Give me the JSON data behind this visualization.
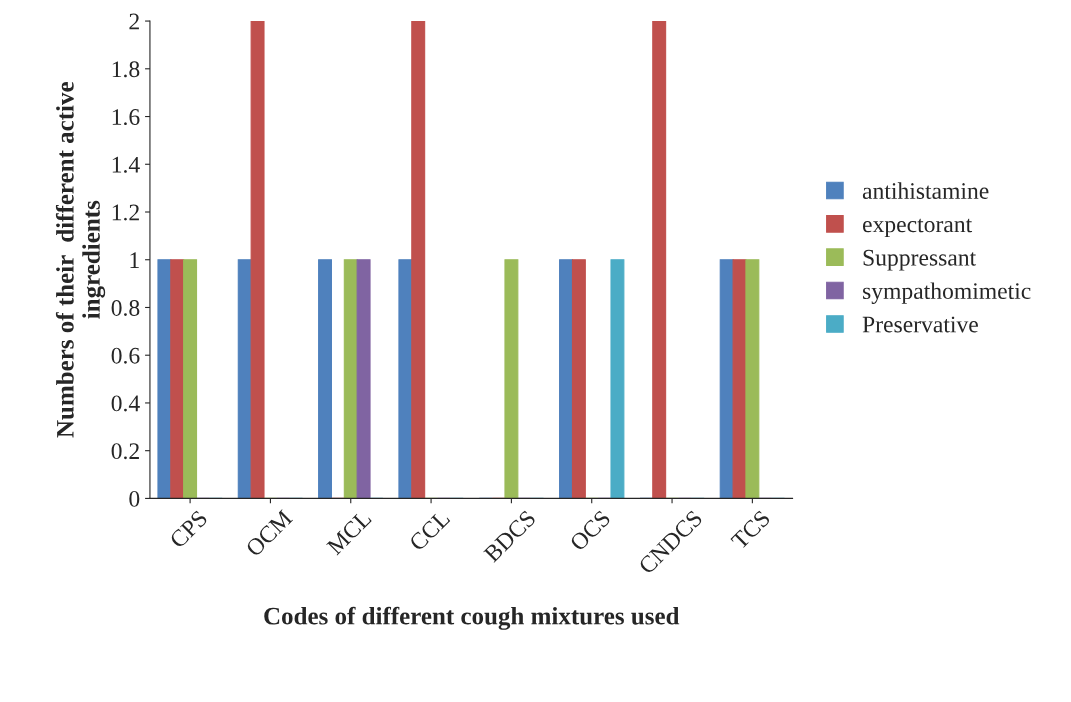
{
  "chart_data": {
    "type": "bar",
    "xlabel": "Codes of different cough mixtures used",
    "ylabel": "Numbers of their  different active\ningredients",
    "categories": [
      "CPS",
      "OCM",
      "MCL",
      "CCL",
      "BDCS",
      "OCS",
      "CNDCS",
      "TCS"
    ],
    "series": [
      {
        "name": "antihistamine",
        "color": "#4f81bd",
        "values": [
          1,
          1,
          1,
          1,
          0,
          1,
          0,
          1
        ]
      },
      {
        "name": "expectorant",
        "color": "#c0504d",
        "values": [
          1,
          2,
          0,
          2,
          0,
          1,
          2,
          1
        ]
      },
      {
        "name": "Suppressant",
        "color": "#9bbb59",
        "values": [
          1,
          0,
          1,
          0,
          1,
          0,
          0,
          1
        ]
      },
      {
        "name": "sympathomimetic",
        "color": "#8064a2",
        "values": [
          0,
          0,
          1,
          0,
          0,
          0,
          0,
          0
        ]
      },
      {
        "name": "Preservative",
        "color": "#4bacc6",
        "values": [
          0,
          0,
          0,
          0,
          0,
          1,
          0,
          0
        ]
      }
    ],
    "ylim": [
      0,
      2
    ],
    "yticks": [
      0,
      0.2,
      0.4,
      0.6,
      0.8,
      1,
      1.2,
      1.4,
      1.6,
      1.8,
      2
    ],
    "grid": false,
    "legend": "right"
  }
}
